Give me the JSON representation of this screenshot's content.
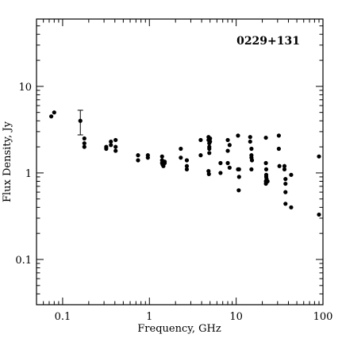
{
  "chart_data": {
    "type": "scatter",
    "title": "0229+131",
    "xlabel": "Frequency, GHz",
    "ylabel": "Flux Density, Jy",
    "xscale": "log",
    "yscale": "log",
    "xlim": [
      0.05,
      100
    ],
    "ylim": [
      0.03,
      60
    ],
    "xticks": [
      {
        "value": 0.1,
        "label": "0.1"
      },
      {
        "value": 1,
        "label": "1"
      },
      {
        "value": 10,
        "label": "10"
      },
      {
        "value": 100,
        "label": "100"
      }
    ],
    "yticks": [
      {
        "value": 0.1,
        "label": "0.1"
      },
      {
        "value": 1,
        "label": "1"
      },
      {
        "value": 10,
        "label": "10"
      }
    ],
    "grid": false,
    "legend": "none",
    "title_position": "top-right",
    "marker_color": "#000000",
    "points": [
      [
        0.074,
        4.5
      ],
      [
        0.08,
        5.0
      ],
      [
        0.16,
        4.0
      ],
      [
        0.178,
        2.5
      ],
      [
        0.178,
        2.2
      ],
      [
        0.178,
        2.0
      ],
      [
        0.318,
        2.0
      ],
      [
        0.318,
        1.9
      ],
      [
        0.36,
        2.3
      ],
      [
        0.36,
        2.1
      ],
      [
        0.408,
        2.4
      ],
      [
        0.408,
        2.0
      ],
      [
        0.408,
        1.8
      ],
      [
        0.74,
        1.6
      ],
      [
        0.74,
        1.4
      ],
      [
        0.96,
        1.6
      ],
      [
        0.96,
        1.5
      ],
      [
        1.4,
        1.55
      ],
      [
        1.4,
        1.4
      ],
      [
        1.4,
        1.3
      ],
      [
        1.42,
        1.25
      ],
      [
        1.45,
        1.2
      ],
      [
        1.5,
        1.3
      ],
      [
        1.5,
        1.35
      ],
      [
        2.3,
        1.9
      ],
      [
        2.3,
        1.5
      ],
      [
        2.7,
        1.4
      ],
      [
        2.7,
        1.2
      ],
      [
        2.7,
        1.1
      ],
      [
        3.9,
        2.4
      ],
      [
        3.9,
        1.6
      ],
      [
        4.8,
        2.6
      ],
      [
        4.8,
        2.4
      ],
      [
        4.9,
        2.2
      ],
      [
        4.9,
        2.0
      ],
      [
        4.9,
        1.9
      ],
      [
        4.9,
        1.7
      ],
      [
        5.0,
        2.5
      ],
      [
        5.0,
        2.3
      ],
      [
        4.8,
        1.05
      ],
      [
        4.85,
        0.97
      ],
      [
        6.6,
        1.3
      ],
      [
        6.6,
        1.0
      ],
      [
        8.0,
        2.4
      ],
      [
        8.0,
        1.8
      ],
      [
        8.0,
        1.3
      ],
      [
        8.4,
        2.1
      ],
      [
        8.4,
        1.15
      ],
      [
        10.5,
        2.7
      ],
      [
        10.5,
        1.1
      ],
      [
        10.8,
        1.1
      ],
      [
        10.8,
        0.9
      ],
      [
        10.7,
        0.63
      ],
      [
        14.5,
        2.6
      ],
      [
        14.5,
        2.3
      ],
      [
        15.0,
        1.9
      ],
      [
        15.0,
        1.6
      ],
      [
        15.0,
        1.5
      ],
      [
        15.2,
        1.4
      ],
      [
        15.0,
        1.1
      ],
      [
        22.0,
        2.55
      ],
      [
        22.0,
        1.3
      ],
      [
        22.2,
        1.1
      ],
      [
        22.2,
        0.95
      ],
      [
        22.2,
        0.9
      ],
      [
        22.4,
        0.85
      ],
      [
        22.0,
        0.8
      ],
      [
        22.0,
        0.75
      ],
      [
        23.0,
        0.8
      ],
      [
        31.0,
        2.7
      ],
      [
        31.0,
        1.9
      ],
      [
        31.5,
        1.2
      ],
      [
        36.0,
        1.2
      ],
      [
        36.0,
        1.1
      ],
      [
        37.0,
        0.85
      ],
      [
        37.0,
        0.75
      ],
      [
        37.0,
        0.6
      ],
      [
        37.0,
        0.44
      ],
      [
        43.0,
        0.95
      ],
      [
        43.0,
        0.4
      ],
      [
        90.0,
        1.55
      ],
      [
        90.0,
        0.33
      ]
    ],
    "error_bars": [
      {
        "x": 0.16,
        "y": 4.0,
        "ylow": 2.75,
        "yhigh": 5.3
      }
    ]
  }
}
